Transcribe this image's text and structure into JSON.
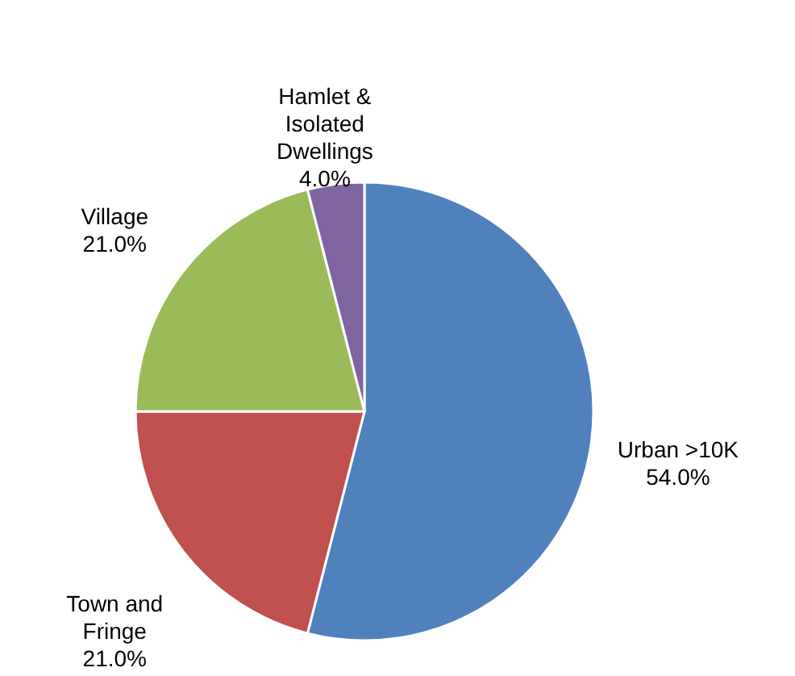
{
  "chart_data": {
    "type": "pie",
    "categories": [
      "Urban >10K",
      "Town and Fringe",
      "Village",
      "Hamlet & Isolated Dwellings"
    ],
    "values": [
      54.0,
      21.0,
      21.0,
      4.0
    ],
    "colors": [
      "#4f81bd",
      "#c0504d",
      "#9bbb59",
      "#8064a2"
    ],
    "value_labels": [
      "54.0%",
      "21.0%",
      "21.0%",
      "4.0%"
    ]
  }
}
